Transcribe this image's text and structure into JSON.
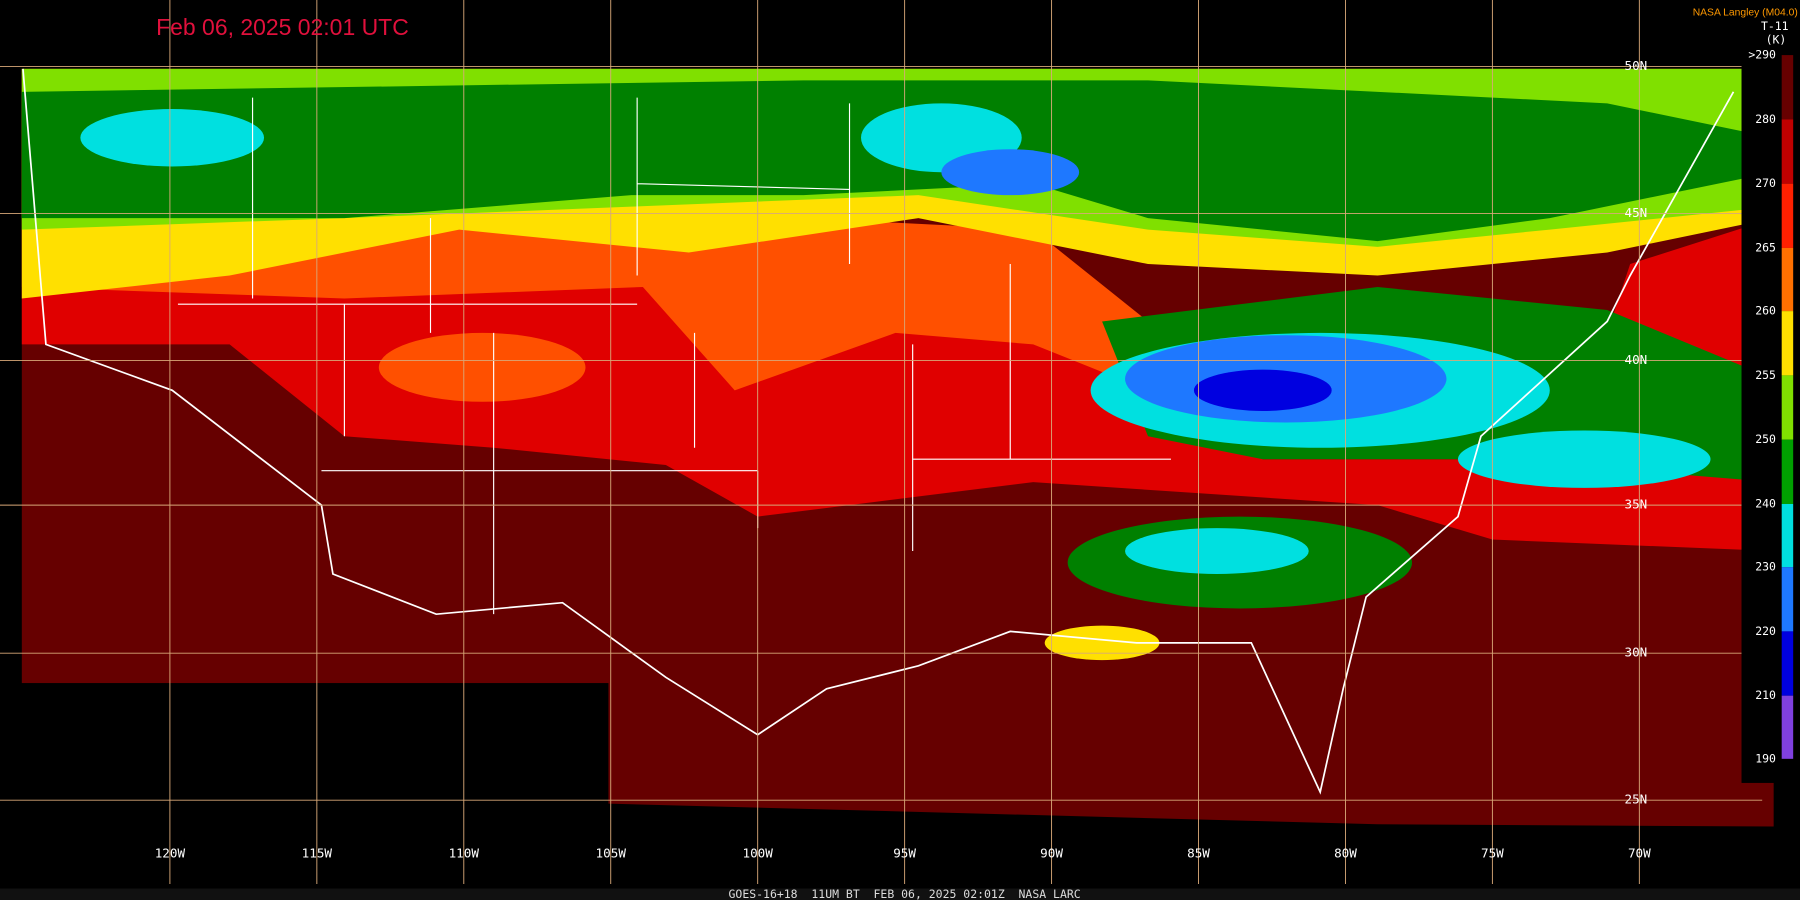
{
  "header": {
    "timestamp": "Feb 06, 2025 02:01 UTC",
    "source": "NASA Langley (M04.0)"
  },
  "legend": {
    "title": "T-11",
    "unit": "(K)",
    "ticks": [
      ">290",
      "280",
      "270",
      "265",
      "260",
      "255",
      "250",
      "240",
      "230",
      "220",
      "210",
      "190"
    ]
  },
  "longitudes": [
    "120W",
    "115W",
    "110W",
    "105W",
    "100W",
    "95W",
    "90W",
    "85W",
    "80W",
    "75W",
    "70W"
  ],
  "latitudes": [
    "50N",
    "45N",
    "40N",
    "35N",
    "30N",
    "25N"
  ],
  "footer": "GOES-16+18  11UM BT  FEB 06, 2025 02:01Z  NASA LARC"
}
